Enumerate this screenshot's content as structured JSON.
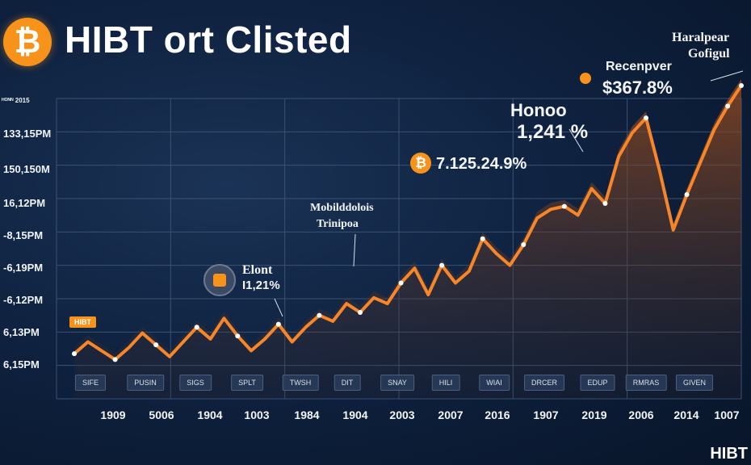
{
  "header": {
    "title": "HIBT ort Clisted",
    "logo_glyph": "₿"
  },
  "chart_data": {
    "type": "line",
    "title": "HIBT ort Clisted",
    "xlabel": "",
    "ylabel": "",
    "x_tick_labels": [
      "1909",
      "5006",
      "1904",
      "1003",
      "1984",
      "1904",
      "2003",
      "2007",
      "2016",
      "1907",
      "2019",
      "2006",
      "2014",
      "1007"
    ],
    "y_tick_labels": [
      "133,15PM",
      "150,150M",
      "16,12PM",
      "-8,15PM",
      "-6,19PM",
      "-6,12PM",
      "6,13PM",
      "6,15PM"
    ],
    "y_top_label": "ᴴᴼᴺᴺ 2015",
    "chips": [
      "SIFE",
      "PUSIN",
      "SIGS",
      "SPLT",
      "TWSH",
      "DIT",
      "SNAY",
      "HILI",
      "WIAI",
      "DRCER",
      "EDUP",
      "RMRAS",
      "GIVEN"
    ],
    "series": [
      {
        "values": [
          0.06,
          0.1,
          0.07,
          0.04,
          0.08,
          0.13,
          0.09,
          0.05,
          0.1,
          0.15,
          0.11,
          0.18,
          0.12,
          0.07,
          0.11,
          0.16,
          0.1,
          0.15,
          0.19,
          0.17,
          0.23,
          0.2,
          0.25,
          0.23,
          0.3,
          0.35,
          0.26,
          0.36,
          0.3,
          0.34,
          0.45,
          0.4,
          0.36,
          0.43,
          0.52,
          0.55,
          0.56,
          0.53,
          0.62,
          0.57,
          0.73,
          0.81,
          0.86,
          0.68,
          0.48,
          0.6,
          0.71,
          0.82,
          0.9,
          0.97
        ]
      }
    ],
    "annotations": [
      {
        "text": "HIBT",
        "kind": "tag"
      },
      {
        "text": "Elont",
        "kind": "label"
      },
      {
        "text": "I1,21%",
        "kind": "label"
      },
      {
        "text": "Mobilddolois",
        "kind": "label"
      },
      {
        "text": "Trinipoa",
        "kind": "label"
      },
      {
        "text": "7.125.24.9%",
        "kind": "label"
      },
      {
        "text": "Honoo",
        "kind": "label"
      },
      {
        "text": "1,241 %",
        "kind": "label"
      },
      {
        "text": "Recenpver",
        "kind": "label"
      },
      {
        "text": "$367.8%",
        "kind": "label"
      },
      {
        "text": "Haralpear",
        "kind": "label"
      },
      {
        "text": "Gofigul",
        "kind": "label"
      }
    ],
    "grid": true,
    "colors": {
      "line": "#f7862a",
      "area": "#7a3d1a",
      "grid": "#3a5273",
      "bitcoin": "#f7931a"
    }
  },
  "brand": "HIBT"
}
